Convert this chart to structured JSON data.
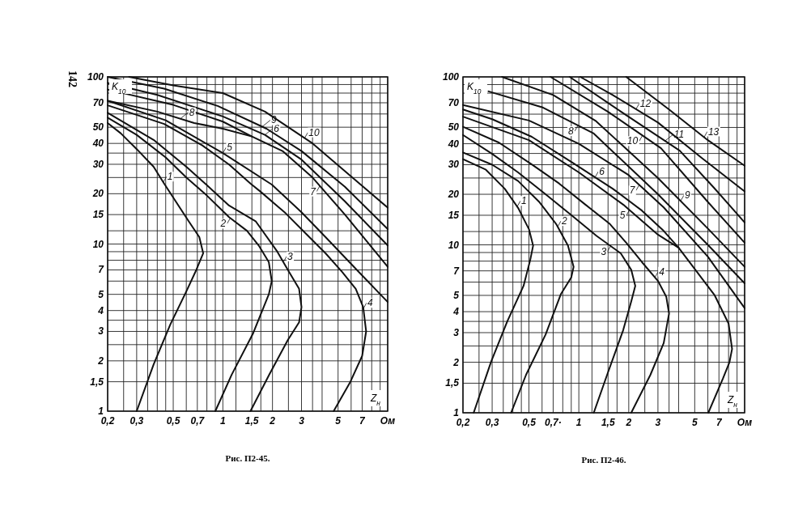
{
  "chart_data": [
    {
      "type": "line",
      "title": "Рис. П2-45.",
      "xlabel": "Z$_{н}$",
      "ylabel": "K$_{10}$",
      "annotations": [
        "142"
      ],
      "legend": "center",
      "log": "xy",
      "grid": true,
      "color": "#111111",
      "xlim": [
        0.2,
        10
      ],
      "ylim": [
        1,
        100
      ],
      "xticks": [
        {
          "value": 0.2,
          "label": "0,2"
        },
        {
          "value": 0.25,
          "label": null
        },
        {
          "value": 0.3,
          "label": "0,3"
        },
        {
          "value": 0.35,
          "label": null
        },
        {
          "value": 0.4,
          "label": null
        },
        {
          "value": 0.45,
          "label": null
        },
        {
          "value": 0.5,
          "label": "0,5"
        },
        {
          "value": 0.6,
          "label": null
        },
        {
          "value": 0.7,
          "label": "0,7"
        },
        {
          "value": 0.8,
          "label": null
        },
        {
          "value": 0.9,
          "label": null
        },
        1,
        {
          "value": 1.2,
          "label": null
        },
        {
          "value": 1.5,
          "label": "1,5"
        },
        {
          "value": 1.7,
          "label": null
        },
        2,
        {
          "value": 2.5,
          "label": null
        },
        3,
        {
          "value": 3.5,
          "label": null
        },
        {
          "value": 4,
          "label": null
        },
        5,
        {
          "value": 6,
          "label": null
        },
        7,
        {
          "value": 8,
          "label": null
        },
        {
          "value": 9,
          "label": null
        },
        {
          "value": 10,
          "label": "Ом"
        }
      ],
      "yticks": [
        1,
        {
          "value": 1.5,
          "label": "1,5"
        },
        2,
        {
          "value": 2.5,
          "label": null
        },
        3,
        {
          "value": 3.5,
          "label": null
        },
        4,
        5,
        {
          "value": 6,
          "label": null
        },
        7,
        {
          "value": 8,
          "label": null
        },
        {
          "value": 9,
          "label": null
        },
        10,
        {
          "value": 12,
          "label": null
        },
        15,
        20,
        {
          "value": 25,
          "label": null
        },
        30,
        {
          "value": 35,
          "label": null
        },
        40,
        50,
        {
          "value": 60,
          "label": null
        },
        70,
        {
          "value": 80,
          "label": null
        },
        {
          "value": 90,
          "label": null
        },
        100
      ],
      "series": [
        {
          "name": "1",
          "x": [
            0.2,
            0.24,
            0.3,
            0.38,
            0.44,
            0.51,
            0.62,
            0.72,
            0.76,
            0.69,
            0.6,
            0.48,
            0.38,
            0.3
          ],
          "values": [
            53,
            46,
            37,
            29,
            23,
            18.4,
            13.7,
            11,
            8.8,
            7,
            5.2,
            3.3,
            1.9,
            1
          ]
        },
        {
          "name": "2",
          "x": [
            0.2,
            0.3,
            0.45,
            0.6,
            0.8,
            1.09,
            1.4,
            1.65,
            1.9,
            1.98,
            1.9,
            1.52,
            1.13,
            0.9
          ],
          "values": [
            57,
            45,
            33,
            25,
            19.5,
            14.5,
            12,
            9.8,
            7.8,
            6,
            5,
            2.9,
            1.65,
            1
          ]
        },
        {
          "name": "3",
          "x": [
            0.2,
            0.38,
            0.6,
            0.8,
            1.09,
            1.58,
            2.14,
            2.48,
            2.9,
            3.0,
            2.9,
            2.48,
            1.91,
            1.47
          ],
          "values": [
            61,
            42,
            29,
            22.5,
            17,
            13.7,
            9,
            7,
            5.4,
            4.2,
            3.4,
            2.67,
            1.65,
            1
          ]
        },
        {
          "name": "4",
          "x": [
            0.2,
            0.44,
            0.75,
            1.09,
            1.47,
            1.7,
            2.4,
            3.23,
            4.2,
            5.3,
            6.4,
            7.1,
            7.4,
            7.0,
            5.9,
            4.7
          ],
          "values": [
            67.6,
            52.3,
            38.9,
            29.9,
            23,
            20.5,
            15.3,
            11.4,
            8.8,
            6.8,
            5.4,
            4.2,
            3.0,
            2.14,
            1.48,
            1
          ]
        },
        {
          "name": "5",
          "x": [
            0.2,
            0.45,
            1,
            1.98,
            3,
            4.2,
            6.5,
            10
          ],
          "values": [
            72,
            55,
            35,
            22.7,
            15.5,
            11,
            7,
            4.5
          ]
        },
        {
          "name": "6",
          "x": [
            0.2,
            0.4,
            0.64,
            1,
            1.8,
            3,
            5.5,
            10
          ],
          "values": [
            92,
            78,
            67,
            58,
            45,
            32,
            18,
            9.8
          ]
        },
        {
          "name": "7",
          "x": [
            0.2,
            0.5,
            1,
            1.5,
            2.3,
            3.5,
            5.5,
            10
          ],
          "values": [
            84,
            68,
            54,
            44,
            36,
            25,
            15,
            7.3
          ]
        },
        {
          "name": "8",
          "x": [
            0.2,
            0.4,
            0.67,
            1,
            1.5
          ],
          "values": [
            72,
            62,
            53,
            49,
            44
          ]
        },
        {
          "name": "9",
          "x": [
            0.2,
            0.44,
            0.93,
            1.84,
            3,
            5.5,
            10
          ],
          "values": [
            100,
            85,
            67,
            49,
            36,
            22,
            12.3
          ]
        },
        {
          "name": "10",
          "x": [
            0.27,
            0.5,
            1,
            1.8,
            3.5,
            6.1,
            10
          ],
          "values": [
            100,
            89,
            80,
            62,
            40,
            25,
            16.5
          ]
        }
      ]
    },
    {
      "type": "line",
      "title": "Рис. П2-46.",
      "xlabel": "Z$_{н}$",
      "ylabel": "K$_{10}$",
      "legend": "center",
      "log": "xy",
      "grid": true,
      "color": "#111111",
      "xlim": [
        0.2,
        10
      ],
      "ylim": [
        1,
        100
      ],
      "xticks": [
        {
          "value": 0.2,
          "label": "0,2"
        },
        {
          "value": 0.25,
          "label": null
        },
        {
          "value": 0.3,
          "label": "0,3"
        },
        {
          "value": 0.35,
          "label": null
        },
        {
          "value": 0.4,
          "label": null
        },
        {
          "value": 0.45,
          "label": null
        },
        {
          "value": 0.5,
          "label": "0,5"
        },
        {
          "value": 0.6,
          "label": null
        },
        {
          "value": 0.7,
          "label": "0,7·"
        },
        {
          "value": 0.8,
          "label": null
        },
        {
          "value": 0.9,
          "label": null
        },
        1,
        {
          "value": 1.2,
          "label": null
        },
        {
          "value": 1.5,
          "label": "1,5"
        },
        {
          "value": 1.7,
          "label": null
        },
        2,
        {
          "value": 2.5,
          "label": null
        },
        3,
        {
          "value": 3.5,
          "label": null
        },
        {
          "value": 4,
          "label": null
        },
        5,
        {
          "value": 6,
          "label": null
        },
        7,
        {
          "value": 8,
          "label": null
        },
        {
          "value": 9,
          "label": null
        },
        {
          "value": 10,
          "label": "Ом"
        }
      ],
      "yticks": [
        1,
        {
          "value": 1.5,
          "label": "1,5"
        },
        2,
        {
          "value": 2.5,
          "label": null
        },
        3,
        {
          "value": 3.5,
          "label": null
        },
        4,
        5,
        {
          "value": 6,
          "label": null
        },
        7,
        {
          "value": 8,
          "label": null
        },
        {
          "value": 9,
          "label": null
        },
        10,
        {
          "value": 12,
          "label": null
        },
        15,
        20,
        {
          "value": 25,
          "label": null
        },
        30,
        {
          "value": 35,
          "label": null
        },
        40,
        50,
        {
          "value": 60,
          "label": null
        },
        70,
        {
          "value": 80,
          "label": null
        },
        {
          "value": 90,
          "label": null
        },
        100
      ],
      "series": [
        {
          "name": "1",
          "x": [
            0.2,
            0.275,
            0.357,
            0.43,
            0.5,
            0.53,
            0.51,
            0.464,
            0.37,
            0.296,
            0.232
          ],
          "values": [
            32.4,
            28,
            21.6,
            16.6,
            12.4,
            9.9,
            8.2,
            5.7,
            3.5,
            2.02,
            1
          ]
        },
        {
          "name": "2",
          "x": [
            0.2,
            0.3,
            0.43,
            0.58,
            0.73,
            0.86,
            0.93,
            0.9,
            0.78,
            0.63,
            0.48,
            0.39
          ],
          "values": [
            35.5,
            30,
            24,
            17.9,
            13.3,
            9.9,
            7.4,
            6.4,
            5.1,
            2.92,
            1.68,
            1
          ]
        },
        {
          "name": "3",
          "x": [
            0.2,
            0.3,
            0.43,
            0.63,
            0.91,
            1.28,
            1.79,
            2.07,
            2.19,
            2.07,
            1.85,
            1.48,
            1.23
          ],
          "values": [
            45.1,
            34.8,
            27,
            20,
            14.9,
            11.3,
            8.9,
            7.1,
            5.7,
            4.6,
            3.1,
            1.68,
            1
          ]
        },
        {
          "name": "4",
          "x": [
            0.2,
            0.33,
            0.52,
            0.76,
            1.1,
            1.54,
            1.93,
            2.4,
            3.0,
            3.37,
            3.5,
            3.25,
            2.7,
            2.07
          ],
          "values": [
            50.5,
            40.6,
            30.1,
            23.2,
            17.3,
            13.3,
            10.3,
            7.9,
            6.1,
            4.9,
            3.9,
            2.6,
            1.68,
            1
          ]
        },
        {
          "name": "5",
          "x": [
            0.2,
            0.5,
            1,
            1.86,
            3,
            4
          ],
          "values": [
            58,
            42,
            27,
            17.3,
            11.5,
            9.6
          ]
        },
        {
          "name": "6",
          "x": [
            0.2,
            0.3,
            0.52,
            0.91,
            1.6,
            2.4,
            3.25,
            4,
            5.1,
            6.6,
            8,
            8.4,
            8.1,
            7.4,
            6.04
          ],
          "values": [
            64,
            56,
            44,
            31,
            21.6,
            16,
            12.1,
            9.6,
            7,
            5,
            3.4,
            2.4,
            2,
            1.6,
            1
          ]
        },
        {
          "name": "7",
          "x": [
            0.2,
            0.5,
            1,
            2,
            3.25,
            6,
            10
          ],
          "values": [
            68,
            55,
            40,
            26,
            16.7,
            8.5,
            4.2
          ]
        },
        {
          "name": "8",
          "x": [
            0.285,
            0.6,
            1.23,
            3,
            6,
            10
          ],
          "values": [
            82,
            66,
            46,
            20,
            10,
            5.9
          ]
        },
        {
          "name": "9",
          "x": [
            0.344,
            0.7,
            1.27,
            3,
            6,
            10
          ],
          "values": [
            100,
            78,
            54.5,
            25,
            12.5,
            7.4
          ]
        },
        {
          "name": "10",
          "x": [
            0.675,
            1.5,
            3.13,
            6,
            10
          ],
          "values": [
            100,
            62,
            37.6,
            18,
            10.3
          ]
        },
        {
          "name": "11",
          "x": [
            0.88,
            1.8,
            4.06,
            6.5,
            10
          ],
          "values": [
            100,
            62,
            36.4,
            22,
            13.6
          ]
        },
        {
          "name": "12",
          "x": [
            1.02,
            1.6,
            3,
            5.5,
            10
          ],
          "values": [
            100,
            78,
            53.5,
            33,
            20.8
          ]
        },
        {
          "name": "13",
          "x": [
            1.93,
            3.5,
            6,
            10
          ],
          "values": [
            100,
            64,
            42,
            29.6
          ]
        }
      ]
    }
  ]
}
